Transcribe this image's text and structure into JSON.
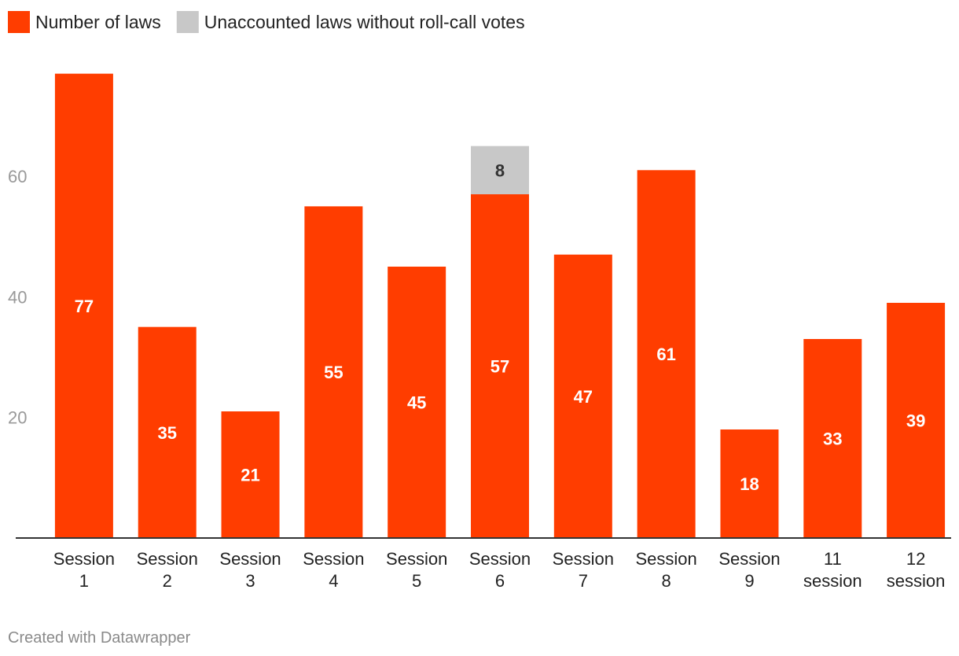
{
  "chart_data": {
    "type": "bar",
    "stacked": true,
    "categories": [
      [
        "Session",
        "1"
      ],
      [
        "Session",
        "2"
      ],
      [
        "Session",
        "3"
      ],
      [
        "Session",
        "4"
      ],
      [
        "Session",
        "5"
      ],
      [
        "Session",
        "6"
      ],
      [
        "Session",
        "7"
      ],
      [
        "Session",
        "8"
      ],
      [
        "Session",
        "9"
      ],
      [
        "11",
        "session"
      ],
      [
        "12",
        "session"
      ]
    ],
    "series": [
      {
        "name": "Number of laws",
        "color": "#ff3d00",
        "label_color": "#ffffff",
        "values": [
          77,
          35,
          21,
          55,
          45,
          57,
          47,
          61,
          18,
          33,
          39
        ]
      },
      {
        "name": "Unaccounted laws without roll-call votes",
        "color": "#c8c8c8",
        "label_color": "#333333",
        "values": [
          0,
          0,
          0,
          0,
          0,
          8,
          0,
          0,
          0,
          0,
          0
        ]
      }
    ],
    "yticks": [
      20,
      40,
      60
    ],
    "ylim": [
      0,
      78
    ],
    "legend_position": "top-left",
    "grid": false,
    "title": "",
    "xlabel": "",
    "ylabel": ""
  },
  "footer": {
    "credit": "Created with Datawrapper"
  }
}
